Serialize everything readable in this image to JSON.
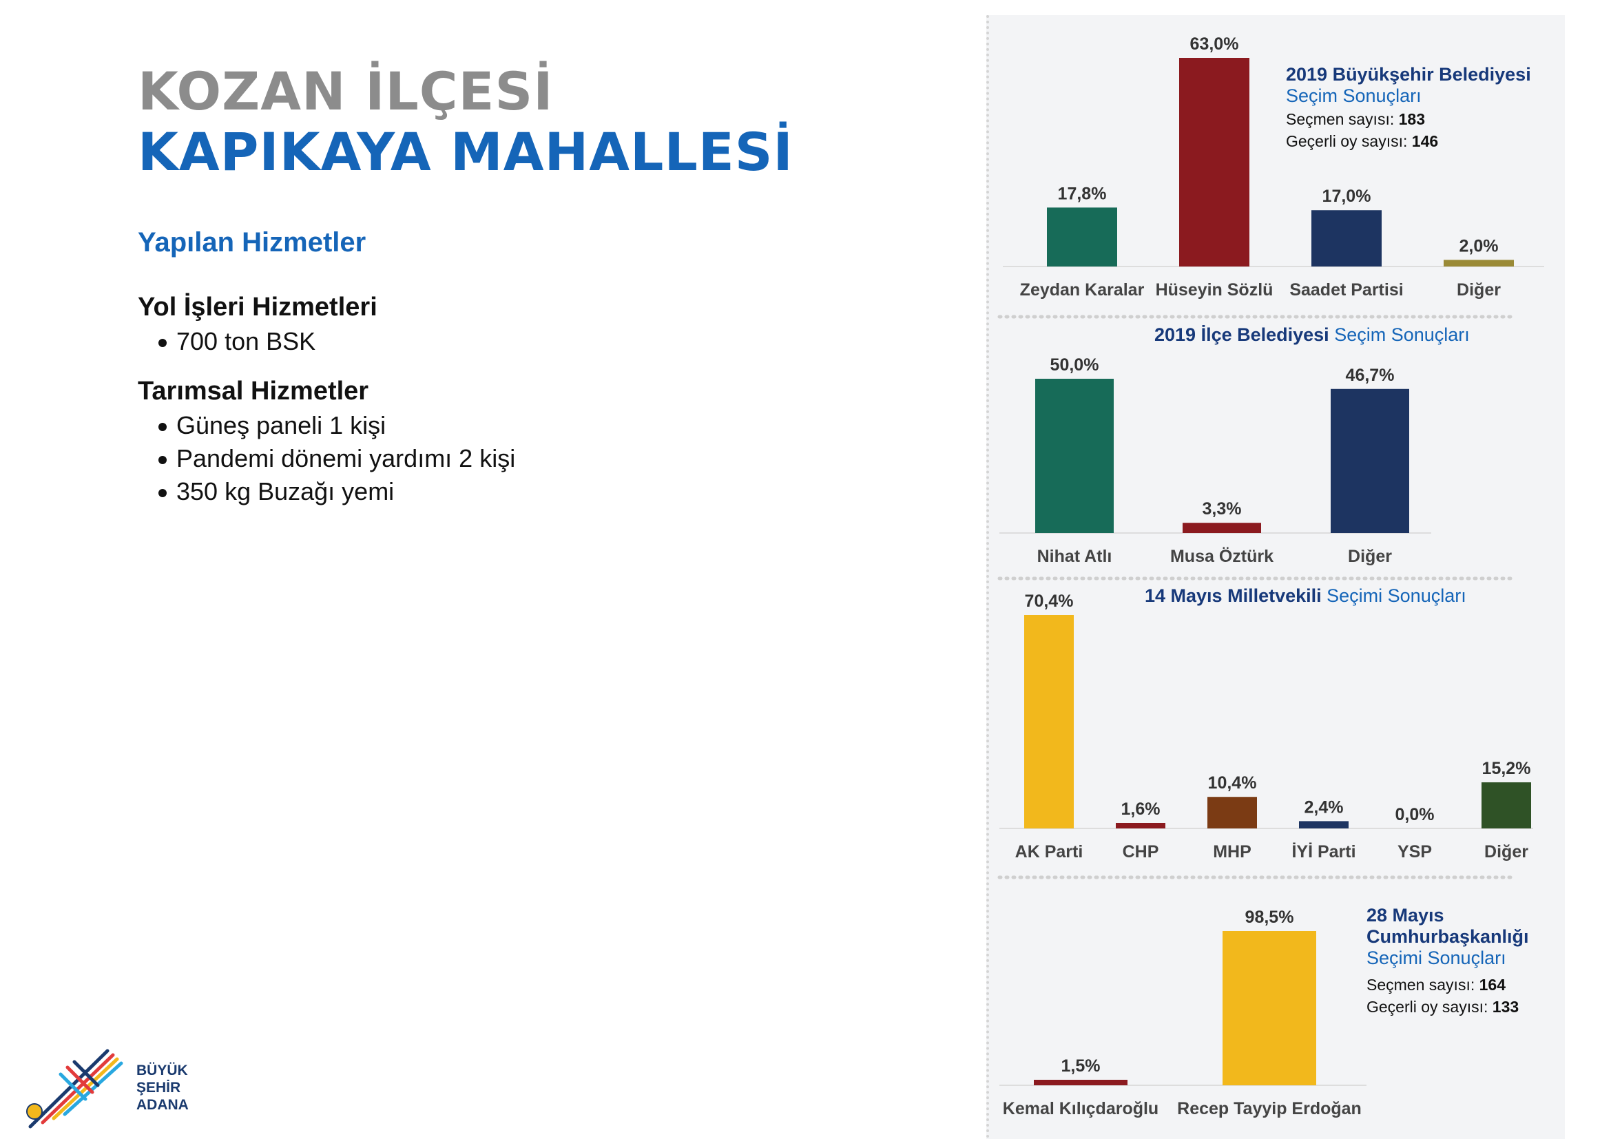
{
  "header": {
    "title_line1": "KOZAN İLÇESİ",
    "title_line2": "KAPIKAYA MAHALLESİ"
  },
  "services": {
    "heading": "Yapılan Hizmetler",
    "groups": [
      {
        "title": "Yol İşleri Hizmetleri",
        "items": [
          "700 ton BSK"
        ]
      },
      {
        "title": "Tarımsal Hizmetler",
        "items": [
          "Güneş paneli 1 kişi",
          "Pandemi dönemi yardımı 2 kişi",
          "350 kg Buzağı yemi"
        ]
      }
    ]
  },
  "logo": {
    "line1": "BÜYÜK",
    "line2": "ŞEHİR",
    "line3": "ADANA"
  },
  "colors": {
    "title_gray": "#8c8c8c",
    "brand_blue": "#1565b8",
    "navy_text": "#17397a",
    "green": "#176b58",
    "red": "#8b1a1f",
    "navy": "#1d3461",
    "olive": "#9a8a36",
    "yellow": "#f2b81c",
    "brown": "#7b3b14",
    "dark_green": "#2f5226",
    "panel_bg": "#f3f4f6"
  },
  "chart_data": [
    {
      "type": "bar",
      "title_bold": "2019 Büyükşehir Belediyesi",
      "title_regular": "Seçim Sonuçları",
      "info": [
        {
          "label": "Seçmen sayısı:",
          "value": "183"
        },
        {
          "label": "Geçerli oy sayısı:",
          "value": "146"
        }
      ],
      "categories": [
        "Zeydan Karalar",
        "Hüseyin Sözlü",
        "Saadet Partisi",
        "Diğer"
      ],
      "values": [
        17.8,
        63.0,
        17.0,
        2.0
      ],
      "value_labels": [
        "17,8%",
        "63,0%",
        "17,0%",
        "2,0%"
      ],
      "colors": [
        "#176b58",
        "#8b1a1f",
        "#1d3461",
        "#9a8a36"
      ],
      "ylim": [
        0,
        63.0
      ],
      "legend": "none"
    },
    {
      "type": "bar",
      "title_bold": "2019 İlçe Belediyesi",
      "title_regular": "Seçim Sonuçları",
      "categories": [
        "Nihat Atlı",
        "Musa Öztürk",
        "Diğer"
      ],
      "values": [
        50.0,
        3.3,
        46.7
      ],
      "value_labels": [
        "50,0%",
        "3,3%",
        "46,7%"
      ],
      "colors": [
        "#176b58",
        "#8b1a1f",
        "#1d3461"
      ],
      "ylim": [
        0,
        50.0
      ],
      "legend": "none"
    },
    {
      "type": "bar",
      "title_bold": "14 Mayıs Milletvekili",
      "title_regular": "Seçimi Sonuçları",
      "categories": [
        "AK Parti",
        "CHP",
        "MHP",
        "İYİ Parti",
        "YSP",
        "Diğer"
      ],
      "values": [
        70.4,
        1.6,
        10.4,
        2.4,
        0.0,
        15.2
      ],
      "value_labels": [
        "70,4%",
        "1,6%",
        "10,4%",
        "2,4%",
        "0,0%",
        "15,2%"
      ],
      "colors": [
        "#f2b81c",
        "#8b1a1f",
        "#7b3b14",
        "#1d3461",
        "#7b3b14",
        "#2f5226"
      ],
      "ylim": [
        0,
        70.4
      ],
      "legend": "none"
    },
    {
      "type": "bar",
      "title_bold": "28 Mayıs Cumhurbaşkanlığı",
      "title_regular": "Seçimi Sonuçları",
      "info": [
        {
          "label": "Seçmen sayısı:",
          "value": "164"
        },
        {
          "label": "Geçerli oy sayısı:",
          "value": "133"
        }
      ],
      "categories": [
        "Kemal Kılıçdaroğlu",
        "Recep Tayyip Erdoğan"
      ],
      "values": [
        1.5,
        98.5
      ],
      "value_labels": [
        "1,5%",
        "98,5%"
      ],
      "colors": [
        "#8b1a1f",
        "#f2b81c"
      ],
      "ylim": [
        0,
        98.5
      ],
      "legend": "none"
    }
  ]
}
